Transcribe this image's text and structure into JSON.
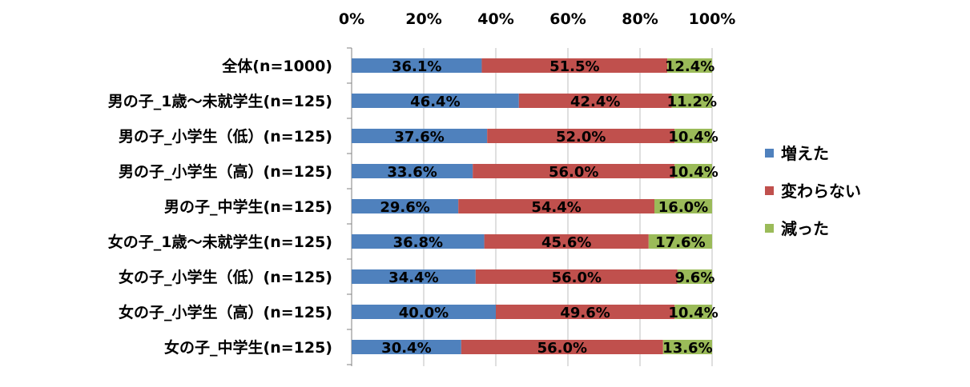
{
  "chart_data": {
    "type": "bar",
    "orientation": "horizontal",
    "stacked": "percent",
    "title": "",
    "xlabel": "",
    "ylabel": "",
    "xlim": [
      0,
      100
    ],
    "x_ticks": [
      "0%",
      "20%",
      "40%",
      "60%",
      "80%",
      "100%"
    ],
    "grid": true,
    "legend_position": "right",
    "categories": [
      "全体(n=1000)",
      "男の子_1歳～未就学生(n=125)",
      "男の子_小学生（低）(n=125)",
      "男の子_小学生（高）(n=125)",
      "男の子_中学生(n=125)",
      "女の子_1歳～未就学生(n=125)",
      "女の子_小学生（低）(n=125)",
      "女の子_小学生（高）(n=125)",
      "女の子_中学生(n=125)"
    ],
    "series": [
      {
        "name": "増えた",
        "color": "#4F81BD",
        "values": [
          36.1,
          46.4,
          37.6,
          33.6,
          29.6,
          36.8,
          34.4,
          40.0,
          30.4
        ]
      },
      {
        "name": "変わらない",
        "color": "#C0504D",
        "values": [
          51.5,
          42.4,
          52.0,
          56.0,
          54.4,
          45.6,
          56.0,
          49.6,
          56.0
        ]
      },
      {
        "name": "減った",
        "color": "#9BBB59",
        "values": [
          12.4,
          11.2,
          10.4,
          10.4,
          16.0,
          17.6,
          9.6,
          10.4,
          13.6
        ]
      }
    ]
  }
}
